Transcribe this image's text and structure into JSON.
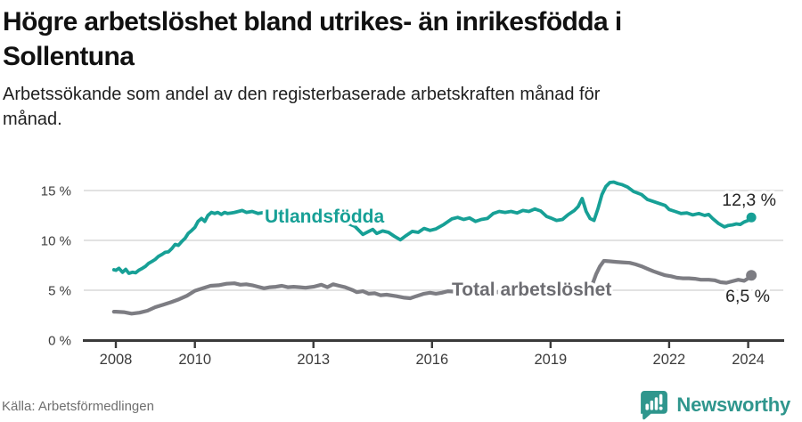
{
  "header": {
    "title_line1": "Högre arbetslöshet bland utrikes- än inrikesfödda i",
    "title_line2": "Sollentuna",
    "subtitle_line1": "Arbetssökande som andel av den registerbaserade arbetskraften månad för",
    "subtitle_line2": "månad."
  },
  "footer": {
    "source": "Källa: Arbetsförmedlingen",
    "logo_text": "Newsworthy"
  },
  "colors": {
    "accent_teal": "#17a096",
    "series_gray": "#7d7d83",
    "gray_label": "#6d6d72",
    "end_label_text": "#232323",
    "axis_line": "#3a3a3a",
    "grid_line": "#d8d8d8",
    "tick_text": "#3c3c3c",
    "logo_teal": "#2f968d"
  },
  "chart_data": {
    "type": "line",
    "title": "Högre arbetslöshet bland utrikes- än inrikesfödda i Sollentuna",
    "subtitle": "Arbetssökande som andel av den registerbaserade arbetskraften månad för månad.",
    "unit": "%",
    "xlim": [
      2007.6,
      2025.0
    ],
    "ylim": [
      0,
      16.8
    ],
    "grid": true,
    "x_ticks": [
      2008,
      2010,
      2013,
      2016,
      2019,
      2022,
      2024
    ],
    "x_tick_labels": [
      "2008",
      "2010",
      "2013",
      "2016",
      "2019",
      "2022",
      "2024"
    ],
    "y_ticks": [
      0,
      5,
      10,
      15
    ],
    "y_tick_labels": [
      "0 %",
      "5 %",
      "10 %",
      "15 %"
    ],
    "series": [
      {
        "name": "Utlandsfödda",
        "color": "#17a096",
        "label_color": "#17a096",
        "end_label": "12,3 %",
        "end_value": 12.3,
        "points": [
          [
            2007.95,
            7.05
          ],
          [
            2008.0,
            7.0
          ],
          [
            2008.08,
            7.2
          ],
          [
            2008.17,
            6.8
          ],
          [
            2008.25,
            7.1
          ],
          [
            2008.33,
            6.7
          ],
          [
            2008.42,
            6.8
          ],
          [
            2008.5,
            6.75
          ],
          [
            2008.58,
            7.0
          ],
          [
            2008.67,
            7.2
          ],
          [
            2008.75,
            7.4
          ],
          [
            2008.83,
            7.7
          ],
          [
            2008.92,
            7.9
          ],
          [
            2009.0,
            8.1
          ],
          [
            2009.08,
            8.4
          ],
          [
            2009.17,
            8.6
          ],
          [
            2009.25,
            8.8
          ],
          [
            2009.33,
            8.85
          ],
          [
            2009.42,
            9.2
          ],
          [
            2009.5,
            9.6
          ],
          [
            2009.58,
            9.5
          ],
          [
            2009.67,
            9.9
          ],
          [
            2009.75,
            10.2
          ],
          [
            2009.83,
            10.7
          ],
          [
            2009.92,
            11.0
          ],
          [
            2010.0,
            11.3
          ],
          [
            2010.08,
            11.9
          ],
          [
            2010.17,
            12.2
          ],
          [
            2010.25,
            11.9
          ],
          [
            2010.33,
            12.5
          ],
          [
            2010.42,
            12.8
          ],
          [
            2010.5,
            12.7
          ],
          [
            2010.58,
            12.8
          ],
          [
            2010.67,
            12.6
          ],
          [
            2010.75,
            12.8
          ],
          [
            2010.83,
            12.7
          ],
          [
            2010.92,
            12.75
          ],
          [
            2011.0,
            12.8
          ],
          [
            2011.1,
            12.9
          ],
          [
            2011.2,
            13.0
          ],
          [
            2011.3,
            12.8
          ],
          [
            2011.45,
            12.9
          ],
          [
            2011.6,
            12.7
          ],
          [
            2011.75,
            12.8
          ],
          [
            2011.9,
            12.6
          ],
          [
            2012.0,
            12.5
          ],
          [
            2012.15,
            12.6
          ],
          [
            2012.3,
            12.4
          ],
          [
            2012.5,
            12.3
          ],
          [
            2012.7,
            12.2
          ],
          [
            2012.9,
            12.1
          ],
          [
            2013.1,
            12.0
          ],
          [
            2013.3,
            11.9
          ],
          [
            2013.5,
            11.9
          ],
          [
            2013.7,
            11.8
          ],
          [
            2013.9,
            11.65
          ],
          [
            2014.05,
            11.4
          ],
          [
            2014.25,
            10.6
          ],
          [
            2014.4,
            10.9
          ],
          [
            2014.5,
            11.1
          ],
          [
            2014.6,
            10.7
          ],
          [
            2014.75,
            10.95
          ],
          [
            2014.9,
            10.8
          ],
          [
            2015.05,
            10.4
          ],
          [
            2015.2,
            10.05
          ],
          [
            2015.35,
            10.5
          ],
          [
            2015.5,
            10.9
          ],
          [
            2015.65,
            10.8
          ],
          [
            2015.8,
            11.2
          ],
          [
            2015.95,
            11.0
          ],
          [
            2016.1,
            11.15
          ],
          [
            2016.3,
            11.6
          ],
          [
            2016.5,
            12.15
          ],
          [
            2016.65,
            12.3
          ],
          [
            2016.8,
            12.1
          ],
          [
            2016.95,
            12.25
          ],
          [
            2017.1,
            11.9
          ],
          [
            2017.25,
            12.1
          ],
          [
            2017.4,
            12.2
          ],
          [
            2017.55,
            12.7
          ],
          [
            2017.7,
            12.9
          ],
          [
            2017.85,
            12.8
          ],
          [
            2018.0,
            12.9
          ],
          [
            2018.15,
            12.75
          ],
          [
            2018.3,
            13.0
          ],
          [
            2018.45,
            12.9
          ],
          [
            2018.6,
            13.15
          ],
          [
            2018.75,
            12.95
          ],
          [
            2018.9,
            12.4
          ],
          [
            2019.0,
            12.25
          ],
          [
            2019.15,
            12.0
          ],
          [
            2019.3,
            12.1
          ],
          [
            2019.45,
            12.6
          ],
          [
            2019.6,
            13.0
          ],
          [
            2019.7,
            13.4
          ],
          [
            2019.8,
            14.2
          ],
          [
            2019.9,
            12.9
          ],
          [
            2020.0,
            12.2
          ],
          [
            2020.1,
            12.0
          ],
          [
            2020.2,
            13.2
          ],
          [
            2020.3,
            14.6
          ],
          [
            2020.4,
            15.4
          ],
          [
            2020.5,
            15.8
          ],
          [
            2020.6,
            15.85
          ],
          [
            2020.7,
            15.7
          ],
          [
            2020.8,
            15.6
          ],
          [
            2020.95,
            15.35
          ],
          [
            2021.1,
            14.9
          ],
          [
            2021.3,
            14.6
          ],
          [
            2021.45,
            14.1
          ],
          [
            2021.6,
            13.9
          ],
          [
            2021.75,
            13.7
          ],
          [
            2021.9,
            13.5
          ],
          [
            2022.0,
            13.1
          ],
          [
            2022.15,
            12.9
          ],
          [
            2022.3,
            12.7
          ],
          [
            2022.45,
            12.75
          ],
          [
            2022.6,
            12.55
          ],
          [
            2022.75,
            12.7
          ],
          [
            2022.9,
            12.5
          ],
          [
            2023.0,
            12.6
          ],
          [
            2023.1,
            12.2
          ],
          [
            2023.25,
            11.7
          ],
          [
            2023.4,
            11.35
          ],
          [
            2023.5,
            11.5
          ],
          [
            2023.6,
            11.55
          ],
          [
            2023.7,
            11.65
          ],
          [
            2023.8,
            11.6
          ],
          [
            2023.9,
            11.85
          ],
          [
            2024.0,
            12.0
          ],
          [
            2024.08,
            12.3
          ]
        ]
      },
      {
        "name": "Total arbetslöshet",
        "color": "#7d7d83",
        "label_color": "#6d6d72",
        "end_label": "6,5 %",
        "end_value": 6.5,
        "points": [
          [
            2007.95,
            2.85
          ],
          [
            2008.0,
            2.85
          ],
          [
            2008.2,
            2.8
          ],
          [
            2008.4,
            2.65
          ],
          [
            2008.6,
            2.75
          ],
          [
            2008.8,
            2.95
          ],
          [
            2009.0,
            3.3
          ],
          [
            2009.2,
            3.55
          ],
          [
            2009.4,
            3.8
          ],
          [
            2009.6,
            4.1
          ],
          [
            2009.8,
            4.45
          ],
          [
            2010.0,
            4.95
          ],
          [
            2010.2,
            5.2
          ],
          [
            2010.4,
            5.45
          ],
          [
            2010.6,
            5.5
          ],
          [
            2010.8,
            5.65
          ],
          [
            2011.0,
            5.7
          ],
          [
            2011.15,
            5.55
          ],
          [
            2011.3,
            5.6
          ],
          [
            2011.45,
            5.5
          ],
          [
            2011.6,
            5.35
          ],
          [
            2011.75,
            5.2
          ],
          [
            2011.9,
            5.3
          ],
          [
            2012.05,
            5.35
          ],
          [
            2012.2,
            5.45
          ],
          [
            2012.35,
            5.3
          ],
          [
            2012.5,
            5.35
          ],
          [
            2012.65,
            5.3
          ],
          [
            2012.8,
            5.25
          ],
          [
            2013.0,
            5.35
          ],
          [
            2013.2,
            5.55
          ],
          [
            2013.35,
            5.3
          ],
          [
            2013.5,
            5.6
          ],
          [
            2013.65,
            5.45
          ],
          [
            2013.8,
            5.3
          ],
          [
            2014.0,
            5.0
          ],
          [
            2014.1,
            4.8
          ],
          [
            2014.25,
            4.9
          ],
          [
            2014.4,
            4.65
          ],
          [
            2014.55,
            4.7
          ],
          [
            2014.7,
            4.5
          ],
          [
            2014.85,
            4.55
          ],
          [
            2015.1,
            4.4
          ],
          [
            2015.3,
            4.25
          ],
          [
            2015.45,
            4.2
          ],
          [
            2015.6,
            4.4
          ],
          [
            2015.8,
            4.65
          ],
          [
            2015.95,
            4.75
          ],
          [
            2016.1,
            4.65
          ],
          [
            2016.25,
            4.75
          ],
          [
            2016.4,
            4.9
          ],
          [
            2016.6,
            4.85
          ],
          [
            2016.8,
            4.8
          ],
          [
            2017.0,
            4.85
          ],
          [
            2017.3,
            4.9
          ],
          [
            2017.6,
            4.8
          ],
          [
            2017.9,
            4.75
          ],
          [
            2018.2,
            4.8
          ],
          [
            2018.5,
            4.75
          ],
          [
            2018.8,
            4.7
          ],
          [
            2019.0,
            4.7
          ],
          [
            2019.3,
            4.75
          ],
          [
            2019.6,
            4.85
          ],
          [
            2019.9,
            5.0
          ],
          [
            2020.05,
            5.5
          ],
          [
            2020.15,
            6.6
          ],
          [
            2020.25,
            7.4
          ],
          [
            2020.35,
            7.95
          ],
          [
            2020.5,
            7.9
          ],
          [
            2020.65,
            7.85
          ],
          [
            2020.8,
            7.8
          ],
          [
            2021.0,
            7.75
          ],
          [
            2021.15,
            7.6
          ],
          [
            2021.3,
            7.4
          ],
          [
            2021.45,
            7.15
          ],
          [
            2021.6,
            6.9
          ],
          [
            2021.75,
            6.7
          ],
          [
            2021.9,
            6.5
          ],
          [
            2022.05,
            6.4
          ],
          [
            2022.2,
            6.25
          ],
          [
            2022.35,
            6.2
          ],
          [
            2022.5,
            6.2
          ],
          [
            2022.65,
            6.15
          ],
          [
            2022.8,
            6.05
          ],
          [
            2023.0,
            6.05
          ],
          [
            2023.15,
            6.0
          ],
          [
            2023.3,
            5.8
          ],
          [
            2023.45,
            5.75
          ],
          [
            2023.6,
            5.9
          ],
          [
            2023.75,
            6.05
          ],
          [
            2023.9,
            5.95
          ],
          [
            2024.0,
            6.2
          ],
          [
            2024.08,
            6.5
          ]
        ]
      }
    ],
    "legend_position": "inline-labels"
  }
}
